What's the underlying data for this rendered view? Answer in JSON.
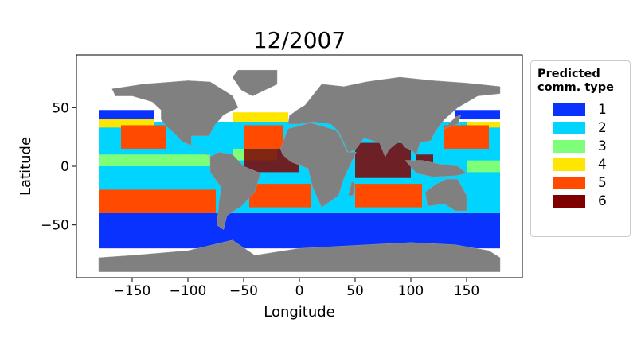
{
  "chart_data": {
    "type": "map",
    "title": "12/2007",
    "xlabel": "Longitude",
    "ylabel": "Latitude",
    "xlim": [
      -200,
      200
    ],
    "ylim": [
      -95,
      95
    ],
    "xticks": [
      -150,
      -100,
      -50,
      0,
      50,
      100,
      150
    ],
    "yticks": [
      -50,
      0,
      50
    ],
    "xtick_labels": [
      "−150",
      "−100",
      "−50",
      "0",
      "50",
      "100",
      "150"
    ],
    "ytick_labels": [
      "−50",
      "0",
      "50"
    ],
    "background_land_color": "#808080",
    "legend": {
      "title": "Predicted\ncomm. type",
      "placement": "right, outside",
      "entries": [
        {
          "label": "1",
          "color": "#0a32ff"
        },
        {
          "label": "2",
          "color": "#00d4ff"
        },
        {
          "label": "3",
          "color": "#7dff7a"
        },
        {
          "label": "4",
          "color": "#ffe600"
        },
        {
          "label": "5",
          "color": "#ff4a00"
        },
        {
          "label": "6",
          "color": "#800000"
        }
      ]
    },
    "regions": [
      {
        "type": 1,
        "lon": [
          -180,
          180
        ],
        "lat": [
          -70,
          -40
        ]
      },
      {
        "type": 1,
        "lon": [
          -180,
          -130
        ],
        "lat": [
          38,
          48
        ]
      },
      {
        "type": 1,
        "lon": [
          140,
          180
        ],
        "lat": [
          40,
          48
        ]
      },
      {
        "type": 2,
        "lon": [
          -180,
          180
        ],
        "lat": [
          -40,
          38
        ]
      },
      {
        "type": 4,
        "lon": [
          -180,
          -130
        ],
        "lat": [
          33,
          40
        ]
      },
      {
        "type": 4,
        "lon": [
          -60,
          -10
        ],
        "lat": [
          38,
          46
        ]
      },
      {
        "type": 4,
        "lon": [
          150,
          180
        ],
        "lat": [
          33,
          38
        ]
      },
      {
        "type": 5,
        "lon": [
          -180,
          -75
        ],
        "lat": [
          -40,
          -20
        ]
      },
      {
        "type": 5,
        "lon": [
          -45,
          10
        ],
        "lat": [
          -35,
          -15
        ]
      },
      {
        "type": 5,
        "lon": [
          50,
          110
        ],
        "lat": [
          -35,
          -15
        ]
      },
      {
        "type": 5,
        "lon": [
          -160,
          -120
        ],
        "lat": [
          15,
          35
        ]
      },
      {
        "type": 5,
        "lon": [
          -50,
          -15
        ],
        "lat": [
          15,
          35
        ]
      },
      {
        "type": 5,
        "lon": [
          130,
          170
        ],
        "lat": [
          15,
          35
        ]
      },
      {
        "type": 3,
        "lon": [
          -180,
          -80
        ],
        "lat": [
          0,
          10
        ]
      },
      {
        "type": 3,
        "lon": [
          -60,
          -20
        ],
        "lat": [
          5,
          15
        ]
      },
      {
        "type": 3,
        "lon": [
          150,
          180
        ],
        "lat": [
          -5,
          5
        ]
      },
      {
        "type": 6,
        "lon": [
          -50,
          0
        ],
        "lat": [
          -5,
          15
        ]
      },
      {
        "type": 6,
        "lon": [
          50,
          100
        ],
        "lat": [
          -10,
          20
        ]
      },
      {
        "type": 6,
        "lon": [
          105,
          120
        ],
        "lat": [
          -5,
          10
        ]
      }
    ]
  }
}
